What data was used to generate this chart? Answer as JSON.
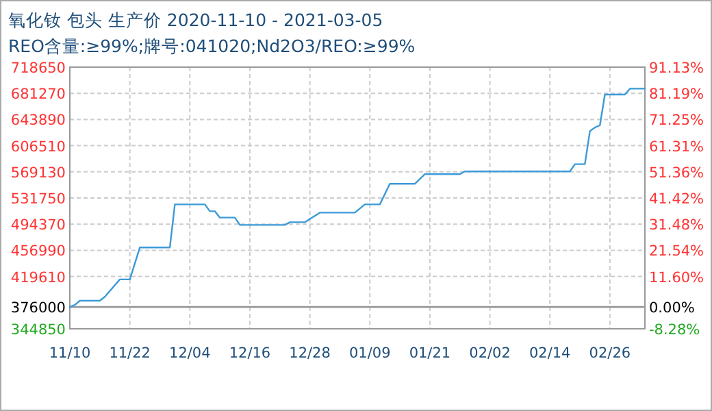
{
  "chart_data": {
    "type": "line",
    "title": "氧化钕 包头 生产价 2020-11-10 - 2021-03-05",
    "subtitle": "REO含量:≥99%;牌号:041020;Nd2O3/REO:≥99%",
    "x": [
      "2020-11-10",
      "2020-11-11",
      "2020-11-12",
      "2020-11-16",
      "2020-11-17",
      "2020-11-20",
      "2020-11-22",
      "2020-11-24",
      "2020-11-30",
      "2020-12-01",
      "2020-12-07",
      "2020-12-08",
      "2020-12-09",
      "2020-12-10",
      "2020-12-13",
      "2020-12-14",
      "2020-12-23",
      "2020-12-24",
      "2020-12-27",
      "2020-12-28",
      "2020-12-30",
      "2021-01-06",
      "2021-01-08",
      "2021-01-11",
      "2021-01-13",
      "2021-01-18",
      "2021-01-20",
      "2021-01-27",
      "2021-01-28",
      "2021-02-18",
      "2021-02-19",
      "2021-02-21",
      "2021-02-22",
      "2021-02-23",
      "2021-02-24",
      "2021-02-25",
      "2021-03-01",
      "2021-03-02",
      "2021-03-05"
    ],
    "series": [
      {
        "color": "#3c9ad8",
        "values": [
          376000,
          379000,
          385000,
          385000,
          390600,
          415400,
          415400,
          461000,
          461000,
          522600,
          522600,
          512800,
          512800,
          503700,
          503700,
          493200,
          493200,
          497100,
          497100,
          501700,
          510800,
          510800,
          522600,
          522600,
          552000,
          552000,
          565800,
          565800,
          569700,
          569700,
          580100,
          580100,
          627100,
          632400,
          635500,
          679500,
          679500,
          687900,
          687900
        ]
      }
    ],
    "xlim": [
      "2020-11-10",
      "2021-03-05"
    ],
    "xticks": [
      {
        "value": "2020-11-10",
        "label": "11/10"
      },
      {
        "value": "2020-11-22",
        "label": "11/22"
      },
      {
        "value": "2020-12-04",
        "label": "12/04"
      },
      {
        "value": "2020-12-16",
        "label": "12/16"
      },
      {
        "value": "2020-12-28",
        "label": "12/28"
      },
      {
        "value": "2021-01-09",
        "label": "01/09"
      },
      {
        "value": "2021-01-21",
        "label": "01/21"
      },
      {
        "value": "2021-02-02",
        "label": "02/02"
      },
      {
        "value": "2021-02-14",
        "label": "02/14"
      },
      {
        "value": "2021-02-26",
        "label": "02/26"
      }
    ],
    "ylim": [
      344850,
      718650
    ],
    "yticks": [
      344850,
      376000,
      419610,
      456990,
      494370,
      531750,
      569130,
      606510,
      643890,
      681270,
      718650
    ],
    "y2lim": [
      -8.28,
      91.13
    ],
    "y2ticks": [
      {
        "value": -8.28,
        "label": "-8.28%"
      },
      {
        "value": 0,
        "label": "0.00%"
      },
      {
        "value": 11.6,
        "label": "11.60%"
      },
      {
        "value": 21.54,
        "label": "21.54%"
      },
      {
        "value": 31.48,
        "label": "31.48%"
      },
      {
        "value": 41.42,
        "label": "41.42%"
      },
      {
        "value": 51.36,
        "label": "51.36%"
      },
      {
        "value": 61.31,
        "label": "61.31%"
      },
      {
        "value": 71.25,
        "label": "71.25%"
      },
      {
        "value": 81.19,
        "label": "81.19%"
      },
      {
        "value": 91.13,
        "label": "91.13%"
      }
    ],
    "ref_lines": [
      {
        "axis": "y",
        "value": 376000,
        "color": "#999999",
        "line_style": "solid"
      }
    ],
    "grid": true,
    "marker": "none",
    "line_style": "solid"
  }
}
